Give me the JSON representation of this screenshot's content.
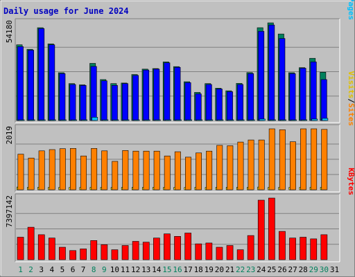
{
  "chart_data": {
    "type": "bar",
    "title": "Daily usage for June 2024",
    "categories": [
      "1",
      "2",
      "3",
      "4",
      "5",
      "6",
      "7",
      "8",
      "9",
      "10",
      "11",
      "12",
      "13",
      "14",
      "15",
      "16",
      "17",
      "18",
      "19",
      "20",
      "21",
      "22",
      "23",
      "24",
      "25",
      "26",
      "27",
      "28",
      "29",
      "30",
      "31"
    ],
    "weekend_days": [
      "1",
      "2",
      "8",
      "9",
      "15",
      "16",
      "22",
      "23",
      "29",
      "30"
    ],
    "panels": [
      {
        "name": "hits-files-pages",
        "ymax_label": "54180",
        "ylim": [
          0,
          54180
        ],
        "axis_labels": [
          {
            "text": "Hits",
            "color": "#00805c"
          },
          {
            "text": "/",
            "color": "#000000"
          },
          {
            "text": "Files",
            "color": "#0000ff"
          },
          {
            "text": "/",
            "color": "#000000"
          },
          {
            "text": "Pages",
            "color": "#00c0ff"
          }
        ],
        "series": [
          {
            "name": "Hits",
            "color": "#00805c",
            "values": [
              42000,
              39500,
              51500,
              42500,
              26500,
              20500,
              19800,
              31700,
              22700,
              20500,
              20800,
              25500,
              28500,
              28800,
              32500,
              29900,
              21500,
              15600,
              20500,
              17900,
              16500,
              20600,
              26600,
              51500,
              54180,
              48000,
              26500,
              29300,
              34500,
              26800
            ]
          },
          {
            "name": "Files",
            "color": "#0000ff",
            "values": [
              41000,
              39000,
              51000,
              42000,
              26000,
              20000,
              19500,
              30000,
              22000,
              19500,
              20500,
              25000,
              28000,
              28500,
              32000,
              29500,
              21000,
              14800,
              20000,
              17500,
              16000,
              20000,
              26000,
              49500,
              53000,
              45500,
              26000,
              29000,
              32500,
              22700
            ]
          },
          {
            "name": "Pages",
            "color": "#00c0ff",
            "values": [
              400,
              300,
              400,
              300,
              300,
              250,
              250,
              1800,
              300,
              250,
              250,
              300,
              300,
              300,
              300,
              300,
              250,
              200,
              250,
              250,
              200,
              250,
              300,
              800,
              300,
              400,
              300,
              300,
              800,
              1200
            ]
          }
        ]
      },
      {
        "name": "visits-sites",
        "ymax_label": "2019",
        "ylim": [
          0,
          2019
        ],
        "axis_labels": [
          {
            "text": "Visits",
            "color": "#e0c000"
          },
          {
            "text": "/",
            "color": "#000000"
          },
          {
            "text": "Sites",
            "color": "#ff8000"
          }
        ],
        "series": [
          {
            "name": "Visits",
            "color": "#ffff00",
            "values": [
              90,
              80,
              85,
              80,
              80,
              80,
              75,
              80,
              80,
              75,
              80,
              80,
              80,
              85,
              80,
              80,
              75,
              80,
              75,
              80,
              80,
              80,
              80,
              90,
              80,
              80,
              80,
              80,
              80,
              80
            ]
          },
          {
            "name": "Sites",
            "color": "#ff8000",
            "values": [
              1180,
              1050,
              1290,
              1330,
              1360,
              1370,
              1120,
              1370,
              1290,
              940,
              1300,
              1280,
              1280,
              1280,
              1120,
              1260,
              1080,
              1220,
              1280,
              1470,
              1460,
              1580,
              1650,
              1650,
              2019,
              1990,
              1590,
              2019,
              2019,
              2000
            ]
          }
        ]
      },
      {
        "name": "kbytes",
        "ymax_label": "7397142",
        "ylim": [
          0,
          7397142
        ],
        "axis_labels": [
          {
            "text": "KBytes",
            "color": "#ff0000"
          }
        ],
        "series": [
          {
            "name": "KBytes",
            "color": "#ff0000",
            "values": [
              2700000,
              3900000,
              3000000,
              2600000,
              1500000,
              1100000,
              1300000,
              2300000,
              1800000,
              1200000,
              1700000,
              2200000,
              2100000,
              2600000,
              3100000,
              2800000,
              3200000,
              1900000,
              2000000,
              1500000,
              1700000,
              1200000,
              2900000,
              7150000,
              7397142,
              3400000,
              2600000,
              2700000,
              2500000,
              3000000
            ]
          }
        ]
      }
    ]
  }
}
